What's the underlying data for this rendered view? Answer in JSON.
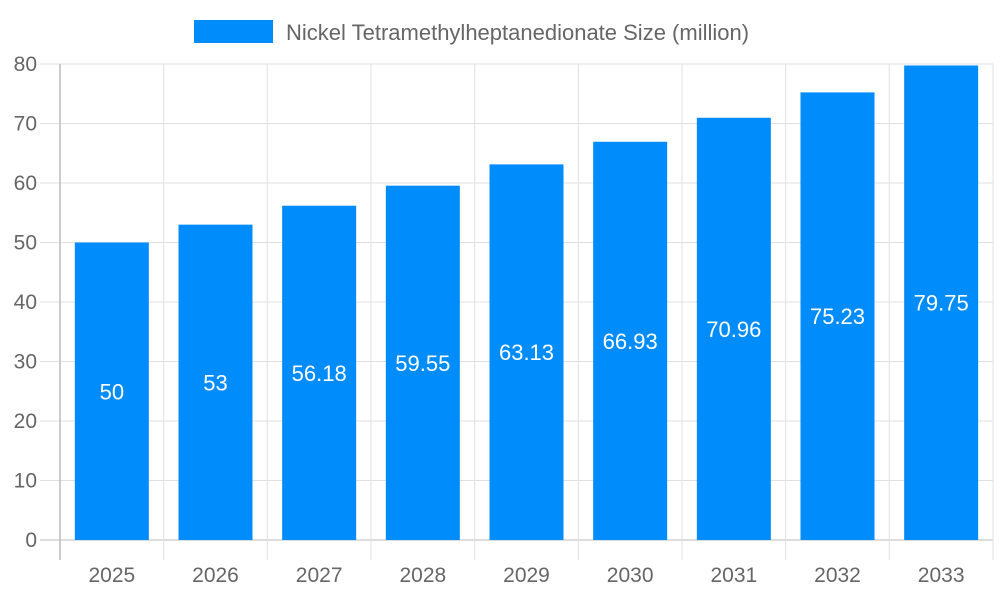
{
  "chart_data": {
    "type": "bar",
    "title": "",
    "xlabel": "",
    "ylabel": "",
    "categories": [
      "2025",
      "2026",
      "2027",
      "2028",
      "2029",
      "2030",
      "2031",
      "2032",
      "2033"
    ],
    "series": [
      {
        "name": "Nickel Tetramethylheptanedionate Size (million)",
        "values": [
          50,
          53,
          56.18,
          59.55,
          63.13,
          66.93,
          70.96,
          75.23,
          79.75
        ],
        "color": "#008cfa"
      }
    ],
    "data_labels": [
      "50",
      "53",
      "56.18",
      "59.55",
      "63.13",
      "66.93",
      "70.96",
      "75.23",
      "79.75"
    ],
    "ylim": [
      0,
      80
    ],
    "yticks": [
      0,
      10,
      20,
      30,
      40,
      50,
      60,
      70,
      80
    ],
    "grid": true,
    "legend": "top-center"
  }
}
